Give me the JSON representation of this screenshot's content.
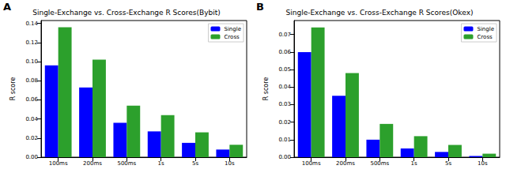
{
  "chart_data": [
    {
      "type": "bar",
      "title": "Single-Exchange vs. Cross-Exchange R Scores(Bybit)",
      "annotations": [
        "A"
      ],
      "y_label": "R score",
      "categories": [
        "100ms",
        "200ms",
        "500ms",
        "1s",
        "5s",
        "10s"
      ],
      "series": [
        {
          "name": "Single",
          "color": "#0000ff",
          "values": [
            0.096,
            0.073,
            0.036,
            0.027,
            0.015,
            0.008
          ]
        },
        {
          "name": "Cross",
          "color": "#2ca02c",
          "values": [
            0.136,
            0.102,
            0.054,
            0.044,
            0.026,
            0.013
          ]
        }
      ],
      "ylim": [
        0,
        0.143
      ],
      "yticks": [
        {
          "value": 0,
          "label": "0.00"
        },
        {
          "value": 0.02,
          "label": "0.02"
        },
        {
          "value": 0.04,
          "label": "0.04"
        },
        {
          "value": 0.06,
          "label": "0.06"
        },
        {
          "value": 0.08,
          "label": "0.08"
        },
        {
          "value": 0.1,
          "label": "0.10"
        },
        {
          "value": 0.12,
          "label": "0.12"
        },
        {
          "value": 0.14,
          "label": "0.14"
        }
      ],
      "grid": false,
      "legend": "upper right"
    },
    {
      "type": "bar",
      "title": "Single-Exchange vs. Cross-Exchange R Scores(Okex)",
      "annotations": [
        "B"
      ],
      "y_label": "R score",
      "categories": [
        "100ms",
        "200ms",
        "500ms",
        "1s",
        "5s",
        "10s"
      ],
      "series": [
        {
          "name": "Single",
          "color": "#0000ff",
          "values": [
            0.06,
            0.035,
            0.01,
            0.005,
            0.003,
            0.0007
          ]
        },
        {
          "name": "Cross",
          "color": "#2ca02c",
          "values": [
            0.074,
            0.048,
            0.019,
            0.012,
            0.007,
            0.002
          ]
        }
      ],
      "ylim": [
        0,
        0.078
      ],
      "yticks": [
        {
          "value": 0,
          "label": "0.00"
        },
        {
          "value": 0.01,
          "label": "0.01"
        },
        {
          "value": 0.02,
          "label": "0.02"
        },
        {
          "value": 0.03,
          "label": "0.03"
        },
        {
          "value": 0.04,
          "label": "0.04"
        },
        {
          "value": 0.05,
          "label": "0.05"
        },
        {
          "value": 0.06,
          "label": "0.06"
        },
        {
          "value": 0.07,
          "label": "0.07"
        }
      ],
      "grid": false,
      "legend": "upper right"
    }
  ]
}
